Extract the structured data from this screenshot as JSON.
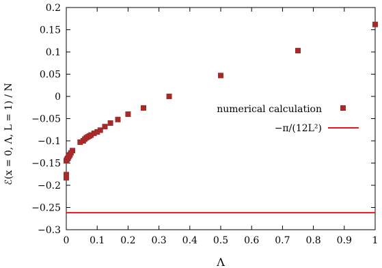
{
  "chart_data": {
    "type": "scatter",
    "xlabel": "Λ",
    "ylabel": "ℰ(x = 0, Λ, L = 1) / N",
    "xlim": [
      0,
      1
    ],
    "ylim": [
      -0.3,
      0.2
    ],
    "xticks": [
      "0",
      "0.1",
      "0.2",
      "0.3",
      "0.4",
      "0.5",
      "0.6",
      "0.7",
      "0.8",
      "0.9",
      "1"
    ],
    "yticks": [
      "−0.3",
      "−0.25",
      "−0.2",
      "−0.15",
      "−0.1",
      "−0.05",
      "0",
      "0.05",
      "0.1",
      "0.15",
      "0.2"
    ],
    "grid": false,
    "legend_position": "right",
    "series": [
      {
        "name": "numerical calculation",
        "kind": "points",
        "color": "#a52a2a",
        "points": [
          [
            0.0,
            -0.183
          ],
          [
            0.0,
            -0.176
          ],
          [
            0.0,
            -0.145
          ],
          [
            0.002,
            -0.142
          ],
          [
            0.004,
            -0.14
          ],
          [
            0.006,
            -0.138
          ],
          [
            0.008,
            -0.135
          ],
          [
            0.01,
            -0.133
          ],
          [
            0.012,
            -0.131
          ],
          [
            0.015,
            -0.127
          ],
          [
            0.02,
            -0.122
          ],
          [
            0.045,
            -0.103
          ],
          [
            0.055,
            -0.1
          ],
          [
            0.06,
            -0.096
          ],
          [
            0.065,
            -0.093
          ],
          [
            0.07,
            -0.091
          ],
          [
            0.075,
            -0.089
          ],
          [
            0.08,
            -0.087
          ],
          [
            0.09,
            -0.083
          ],
          [
            0.1,
            -0.08
          ],
          [
            0.11,
            -0.076
          ],
          [
            0.125,
            -0.068
          ],
          [
            0.143,
            -0.06
          ],
          [
            0.167,
            -0.052
          ],
          [
            0.2,
            -0.04
          ],
          [
            0.25,
            -0.026
          ],
          [
            0.333,
            0.0
          ],
          [
            0.5,
            0.047
          ],
          [
            0.75,
            0.103
          ],
          [
            1.0,
            0.162
          ]
        ]
      },
      {
        "name": "−π/(12L²)",
        "kind": "line",
        "color": "#e8141a",
        "value": -0.2618
      }
    ]
  }
}
